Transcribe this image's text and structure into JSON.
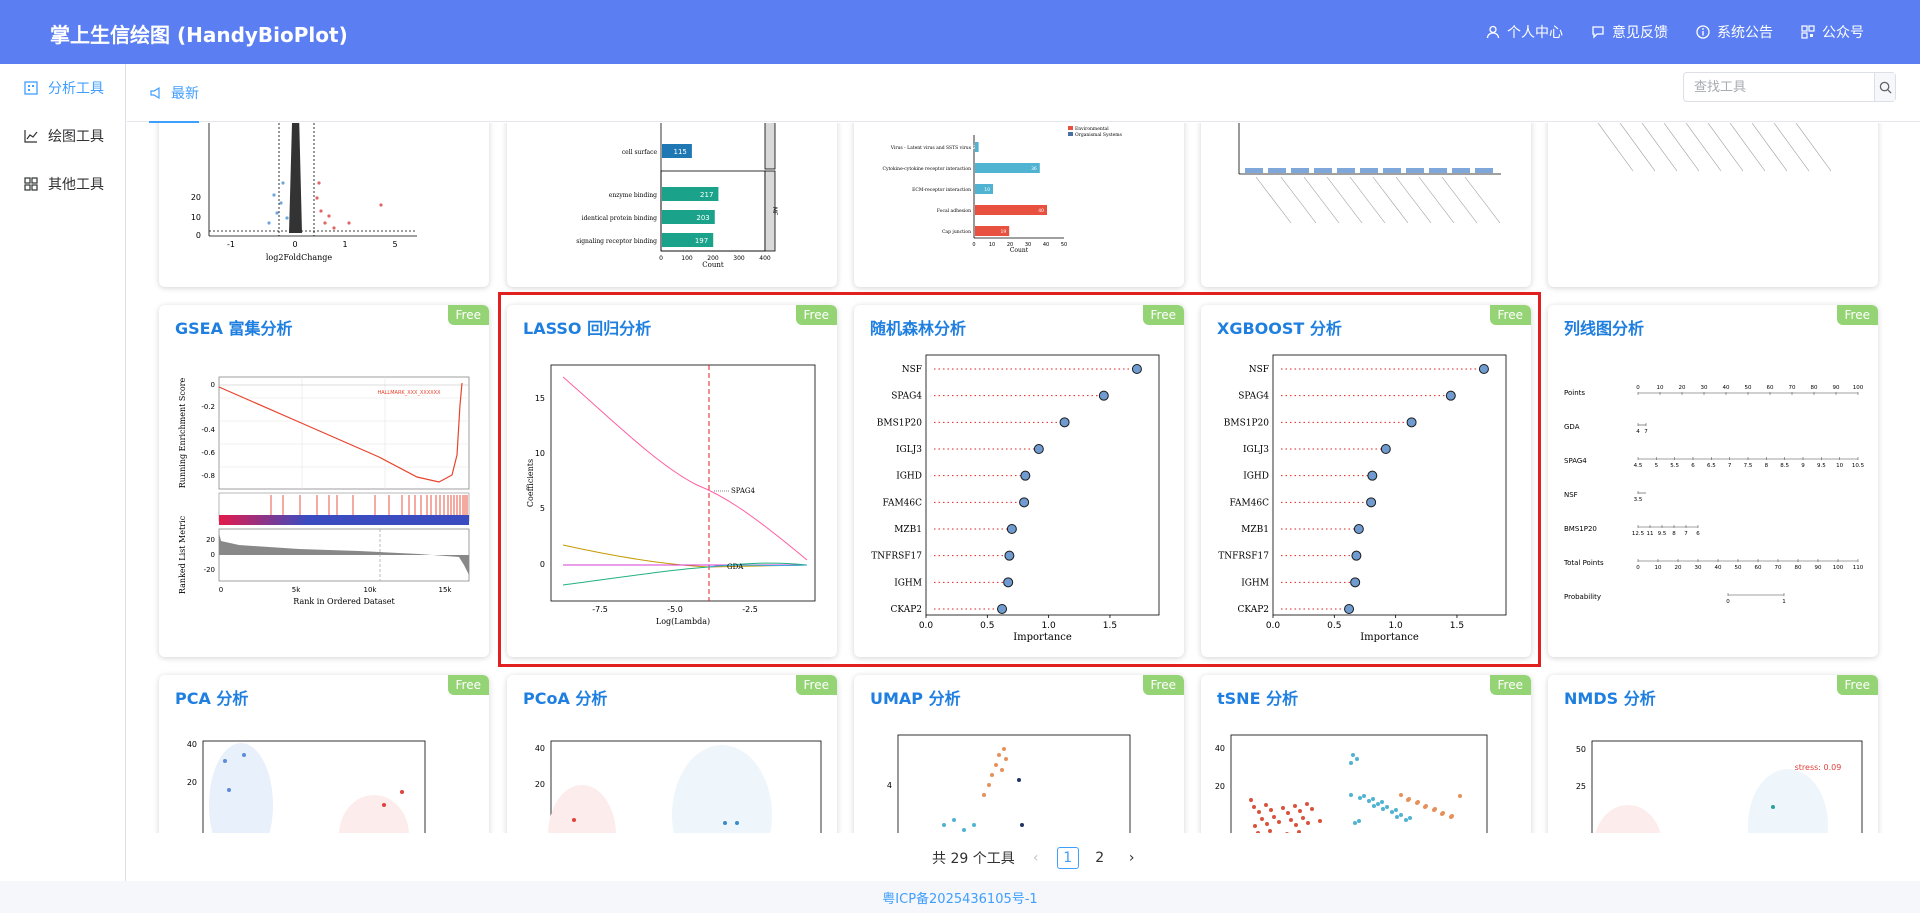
{
  "header": {
    "brand": "掌上生信绘图 (HandyBioPlot)",
    "nav": [
      {
        "label": "个人中心",
        "icon": "user-icon"
      },
      {
        "label": "意见反馈",
        "icon": "feedback-icon"
      },
      {
        "label": "系统公告",
        "icon": "info-icon"
      },
      {
        "label": "公众号",
        "icon": "qrcode-icon"
      }
    ]
  },
  "sidebar": {
    "items": [
      {
        "label": "分析工具",
        "icon": "grid-icon",
        "active": true
      },
      {
        "label": "绘图工具",
        "icon": "line-chart-icon",
        "active": false
      },
      {
        "label": "其他工具",
        "icon": "apps-icon",
        "active": false
      }
    ]
  },
  "tabbar": {
    "tab_label": "最新",
    "search_placeholder": "查找工具"
  },
  "cards": {
    "badge": "Free",
    "row2": [
      {
        "title": "GSEA 富集分析"
      },
      {
        "title": "LASSO 回归分析"
      },
      {
        "title": "随机森林分析"
      },
      {
        "title": "XGBOOST 分析"
      },
      {
        "title": "列线图分析"
      }
    ],
    "row3": [
      {
        "title": "PCA 分析"
      },
      {
        "title": "PCoA 分析"
      },
      {
        "title": "UMAP 分析"
      },
      {
        "title": "tSNE 分析"
      },
      {
        "title": "NMDS 分析"
      }
    ]
  },
  "top_row_previews": {
    "volcano": {
      "xlabel": "log2FoldChange",
      "xticks": [
        "-1",
        "0",
        "1",
        "5"
      ],
      "yticks": [
        "0",
        "10",
        "20"
      ]
    },
    "go_bar": {
      "labels": [
        "cell surface",
        "enzyme binding",
        "identical protein binding",
        "signaling receptor binding"
      ],
      "values": [
        115,
        217,
        203,
        197
      ],
      "xlabel": "Count",
      "xticks": [
        "0",
        "100",
        "200",
        "300",
        "400"
      ],
      "facet": "MF"
    },
    "kegg_bar": {
      "labels": [
        "Virus - Latent virus and SSTS virus",
        "Cytokine-cytokine receptor interaction",
        "ECM-receptor interaction",
        "Focal adhesion",
        "Cap junction"
      ],
      "values": [
        2,
        36,
        10,
        40,
        19
      ],
      "xlabel": "Count",
      "xticks": [
        "0",
        "10",
        "20",
        "30",
        "40",
        "50"
      ],
      "legend": [
        "Environmental",
        "Organismal Systems"
      ]
    }
  },
  "gsea": {
    "ylabel_top": "Running Enrichment Score",
    "ylabel_bottom": "Ranked List Metric",
    "xlabel": "Rank in Ordered Dataset",
    "yticks_top": [
      "0",
      "-0.2",
      "-0.4",
      "-0.6",
      "-0.8"
    ],
    "yticks_bottom": [
      "20",
      "0",
      "-20"
    ],
    "xticks": [
      "0",
      "5k",
      "10k",
      "15k"
    ],
    "legend_text": "HALLMARK_XXX_XXXXXX"
  },
  "lasso": {
    "ylabel": "Coefficients",
    "xlabel": "Log(Lambda)",
    "yticks": [
      "0",
      "5",
      "10",
      "15"
    ],
    "xticks": [
      "-7.5",
      "-5.0",
      "-2.5"
    ],
    "annotations": [
      "SPAG4",
      "GDA"
    ]
  },
  "importance_chart": {
    "genes": [
      "NSF",
      "SPAG4",
      "BMS1P20",
      "IGLJ3",
      "IGHD",
      "FAM46C",
      "MZB1",
      "TNFRSF17",
      "IGHM",
      "CKAP2"
    ],
    "rf_values": [
      1.72,
      1.45,
      1.13,
      0.92,
      0.81,
      0.8,
      0.7,
      0.68,
      0.67,
      0.62
    ],
    "xgb_values": [
      1.72,
      1.45,
      1.13,
      0.92,
      0.81,
      0.8,
      0.7,
      0.68,
      0.67,
      0.62
    ],
    "xlabel": "Importance",
    "xticks": [
      "0.0",
      "0.5",
      "1.0",
      "1.5"
    ]
  },
  "nomogram": {
    "rows": [
      "Points",
      "GDA",
      "SPAG4",
      "NSF",
      "BMS1P20",
      "Total Points",
      "Probability"
    ],
    "points_ticks": [
      "0",
      "10",
      "20",
      "30",
      "40",
      "50",
      "60",
      "70",
      "80",
      "90",
      "100"
    ],
    "gda_ticks": [
      "4",
      "7"
    ],
    "spag4_ticks": [
      "4.5",
      "5",
      "5.5",
      "6",
      "6.5",
      "7",
      "7.5",
      "8",
      "8.5",
      "9",
      "9.5",
      "10",
      "10.5"
    ],
    "nsf_ticks": [
      "3.5"
    ],
    "bms_ticks": [
      "12.5",
      "11",
      "9.5",
      "8",
      "7",
      "6"
    ],
    "total_ticks": [
      "0",
      "10",
      "20",
      "30",
      "40",
      "50",
      "60",
      "70",
      "80",
      "90",
      "100",
      "110"
    ],
    "prob_ticks": [
      "0",
      "1"
    ]
  },
  "row3_previews": {
    "pca_yticks": [
      "40",
      "20"
    ],
    "pcoa_yticks": [
      "40",
      "20"
    ],
    "umap_yticks": [
      "4"
    ],
    "tsne_yticks": [
      "40",
      "20"
    ],
    "nmds_yticks": [
      "50",
      "25"
    ],
    "nmds_stress": "stress: 0.09"
  },
  "pagination": {
    "total": "共 29 个工具",
    "pages": [
      "1",
      "2"
    ],
    "current": "1"
  },
  "footer": {
    "text": "粤ICP备2025436105号-1"
  },
  "colors": {
    "header": "#5b7ff2",
    "accent": "#409eff",
    "title": "#1f7fe0",
    "badge": "#95d475",
    "highlight": "#e32020",
    "point_fill": "#6f9bd1"
  }
}
